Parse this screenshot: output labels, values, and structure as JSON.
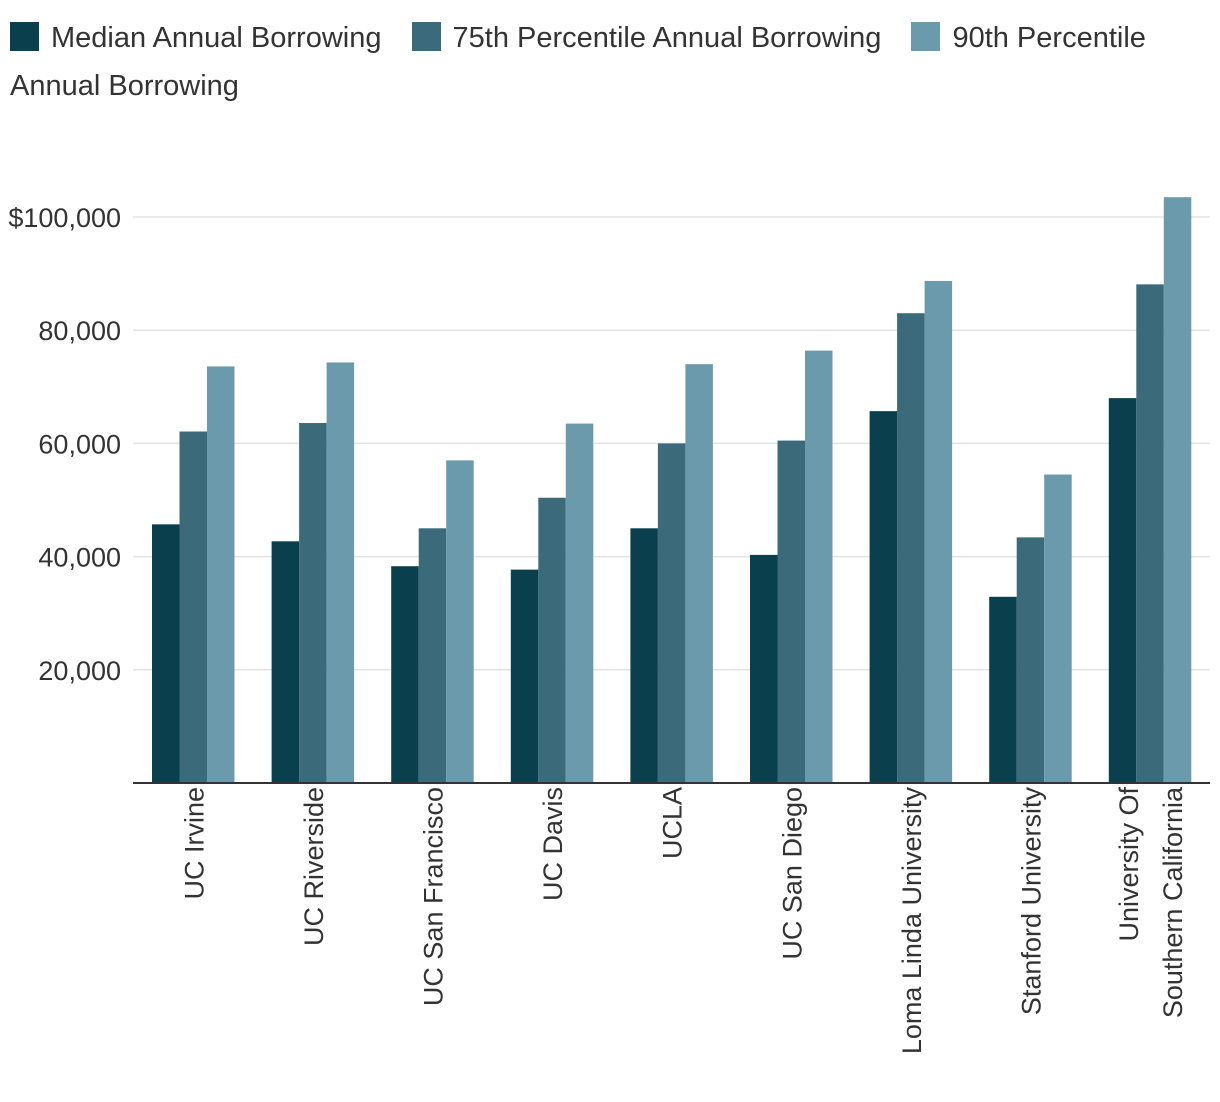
{
  "chart_data": {
    "type": "bar",
    "title": "",
    "xlabel": "",
    "ylabel": "",
    "categories": [
      [
        "UC Irvine"
      ],
      [
        "UC Riverside"
      ],
      [
        "UC San Francisco"
      ],
      [
        "UC Davis"
      ],
      [
        "UCLA"
      ],
      [
        "UC San Diego"
      ],
      [
        "Loma Linda University"
      ],
      [
        "Stanford University"
      ],
      [
        "University Of",
        "Southern California"
      ]
    ],
    "series": [
      {
        "name": "Median Annual Borrowing",
        "color": "#0a3f4e",
        "values": [
          45700,
          42700,
          38300,
          37700,
          45000,
          40300,
          65700,
          32900,
          68000
        ]
      },
      {
        "name": "75th Percentile Annual Borrowing",
        "color": "#3b6b7b",
        "values": [
          62100,
          63600,
          45000,
          50400,
          60000,
          60500,
          83000,
          43400,
          88100
        ]
      },
      {
        "name": "90th Percentile Annual Borrowing",
        "color": "#6b9aac",
        "values": [
          73600,
          74300,
          57000,
          63500,
          74000,
          76400,
          88700,
          54500,
          103500
        ]
      }
    ],
    "ylim": [
      0,
      110000
    ],
    "yticks": [
      {
        "value": 20000,
        "label": "20,000"
      },
      {
        "value": 40000,
        "label": "40,000"
      },
      {
        "value": 60000,
        "label": "60,000"
      },
      {
        "value": 80000,
        "label": "80,000"
      },
      {
        "value": 100000,
        "label": "$100,000"
      }
    ],
    "grid": true,
    "legend_position": "top"
  }
}
